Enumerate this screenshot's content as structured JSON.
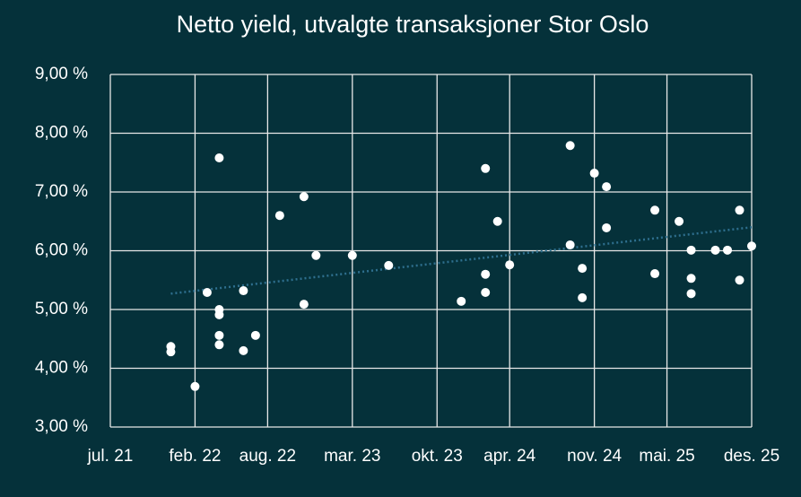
{
  "chart_data": {
    "type": "scatter",
    "title": "Netto yield, utvalgte transaksjoner Stor Oslo",
    "series": [
      {
        "color": "#ffffff",
        "x": [
          "2021-12",
          "2021-12",
          "2022-02",
          "2022-03",
          "2022-04",
          "2022-04",
          "2022-04",
          "2022-04",
          "2022-04",
          "2022-06",
          "2022-06",
          "2022-07",
          "2022-09",
          "2022-11",
          "2022-11",
          "2022-12",
          "2023-03",
          "2023-06",
          "2023-12",
          "2024-02",
          "2024-02",
          "2024-02",
          "2024-03",
          "2024-04",
          "2024-09",
          "2024-09",
          "2024-10",
          "2024-10",
          "2024-11",
          "2024-12",
          "2024-12",
          "2025-04",
          "2025-04",
          "2025-06",
          "2025-07",
          "2025-07",
          "2025-07",
          "2025-09",
          "2025-10",
          "2025-11",
          "2025-11",
          "2025-12"
        ],
        "values": [
          4.37,
          4.28,
          3.69,
          5.29,
          4.4,
          7.58,
          5.0,
          4.91,
          4.56,
          5.32,
          4.3,
          4.56,
          6.6,
          6.92,
          5.09,
          5.92,
          5.92,
          5.75,
          5.14,
          5.6,
          7.4,
          5.29,
          6.5,
          5.76,
          7.79,
          6.1,
          5.7,
          5.2,
          7.32,
          7.09,
          6.39,
          6.69,
          5.61,
          6.5,
          6.01,
          5.53,
          5.27,
          6.01,
          6.01,
          6.69,
          5.5,
          6.08
        ]
      }
    ],
    "trendline": {
      "color": "#2e6f8e",
      "x": [
        "2021-12",
        "2025-12"
      ],
      "values": [
        5.27,
        6.4
      ]
    },
    "xlim": [
      "2021-07",
      "2025-12"
    ],
    "xticks": [
      {
        "value": "2021-07",
        "label": "jul. 21"
      },
      {
        "value": "2022-02",
        "label": "feb. 22"
      },
      {
        "value": "2022-08",
        "label": "aug. 22"
      },
      {
        "value": "2023-03",
        "label": "mar. 23"
      },
      {
        "value": "2023-10",
        "label": "okt. 23"
      },
      {
        "value": "2024-04",
        "label": "apr. 24"
      },
      {
        "value": "2024-11",
        "label": "nov. 24"
      },
      {
        "value": "2025-05",
        "label": "mai. 25"
      },
      {
        "value": "2025-12",
        "label": "des. 25"
      }
    ],
    "ylim": [
      3,
      9
    ],
    "yticks": [
      {
        "value": 3,
        "label": "3,00 %"
      },
      {
        "value": 4,
        "label": "4,00 %"
      },
      {
        "value": 5,
        "label": "5,00 %"
      },
      {
        "value": 6,
        "label": "6,00 %"
      },
      {
        "value": 7,
        "label": "7,00 %"
      },
      {
        "value": 8,
        "label": "8,00 %"
      },
      {
        "value": 9,
        "label": "9,00 %"
      }
    ],
    "grid": true
  }
}
